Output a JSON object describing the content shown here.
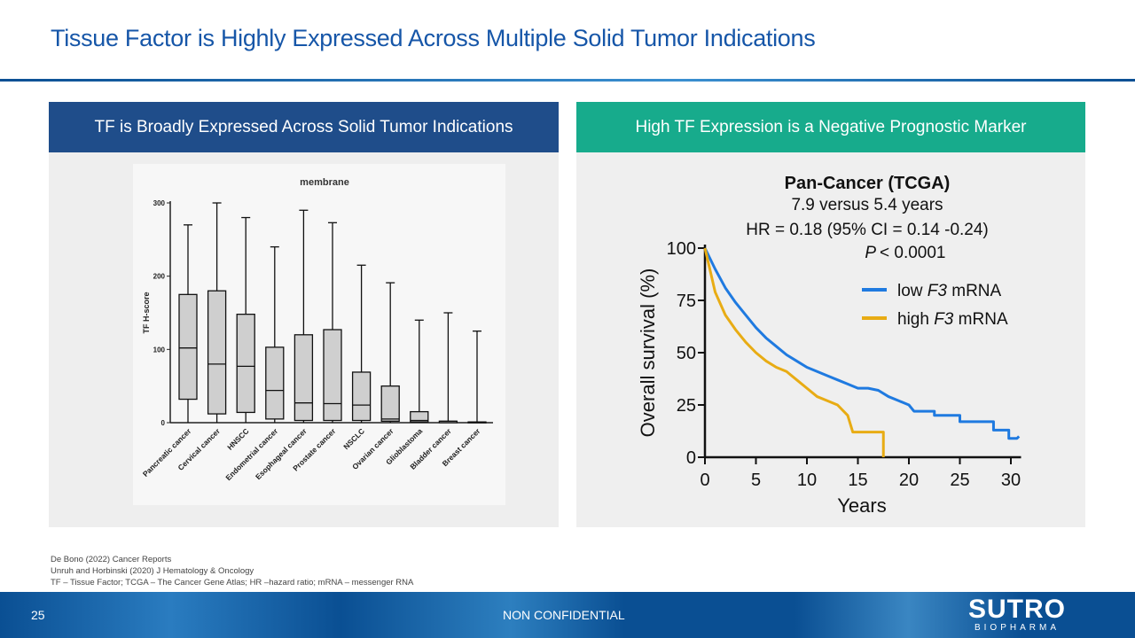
{
  "slide": {
    "title": "Tissue Factor is Highly Expressed Across Multiple Solid Tumor Indications",
    "left_header": "TF is Broadly Expressed Across Solid Tumor Indications",
    "right_header": "High TF Expression is a Negative Prognostic Marker",
    "references": [
      "De Bono (2022) Cancer Reports",
      "Unruh and Horbinski (2020) J Hematology & Oncology",
      "TF – Tissue Factor; TCGA – The Cancer Gene Atlas; HR –hazard ratio; mRNA – messenger RNA"
    ],
    "page_number": "25",
    "confidentiality": "NON CONFIDENTIAL",
    "logo": {
      "name": "SUTRO",
      "sub": "BIOPHARMA"
    },
    "colors": {
      "title": "#1656a8",
      "left_header": "#1f4d8a",
      "right_header": "#17ab8c",
      "footer": "#0a4f93"
    }
  },
  "chart_data": [
    {
      "type": "box",
      "title": "membrane",
      "ylabel": "TF H-score",
      "ylim": [
        0,
        300
      ],
      "yticks": [
        "0",
        "100",
        "200",
        "300"
      ],
      "categories": [
        "Pancreatic cancer",
        "Cervical cancer",
        "HNSCC",
        "Endometrial cancer",
        "Esophageal cancer",
        "Prostate cancer",
        "NSCLC",
        "Ovarian cancer",
        "Glioblastoma",
        "Bladder cancer",
        "Breast cancer"
      ],
      "boxes": [
        {
          "min": 0,
          "q1": 32,
          "median": 102,
          "q3": 175,
          "max": 270
        },
        {
          "min": 0,
          "q1": 12,
          "median": 80,
          "q3": 180,
          "max": 300
        },
        {
          "min": 0,
          "q1": 14,
          "median": 77,
          "q3": 148,
          "max": 280
        },
        {
          "min": 0,
          "q1": 5,
          "median": 44,
          "q3": 103,
          "max": 240
        },
        {
          "min": 0,
          "q1": 3,
          "median": 27,
          "q3": 120,
          "max": 290
        },
        {
          "min": 0,
          "q1": 3,
          "median": 26,
          "q3": 127,
          "max": 273
        },
        {
          "min": 0,
          "q1": 3,
          "median": 24,
          "q3": 69,
          "max": 215
        },
        {
          "min": 0,
          "q1": 2,
          "median": 5,
          "q3": 50,
          "max": 191
        },
        {
          "min": 0,
          "q1": 1,
          "median": 3,
          "q3": 15,
          "max": 140
        },
        {
          "min": 0,
          "q1": 0,
          "median": 2,
          "q3": 2,
          "max": 150
        },
        {
          "min": 0,
          "q1": 0,
          "median": 1,
          "q3": 1,
          "max": 125
        }
      ]
    },
    {
      "type": "line",
      "title": "Pan-Cancer (TCGA)",
      "subtitle_lines": [
        "7.9 versus 5.4 years",
        "HR = 0.18 (95% CI = 0.14 -0.24)",
        "< 0.0001"
      ],
      "p_label": "P",
      "xlabel": "Years",
      "ylabel": "Overall survival (%)",
      "xlim": [
        0,
        31
      ],
      "ylim": [
        0,
        100
      ],
      "xticks": [
        "0",
        "5",
        "10",
        "15",
        "20",
        "25",
        "30"
      ],
      "yticks": [
        "0",
        "25",
        "50",
        "75",
        "100"
      ],
      "legend_position": "right",
      "series": [
        {
          "name": "low F3 mRNA",
          "name_prefix": "low ",
          "name_italic": "F3",
          "name_suffix": " mRNA",
          "color": "#1f7ae0",
          "points": [
            [
              0,
              100
            ],
            [
              1,
              90
            ],
            [
              2,
              81
            ],
            [
              3,
              74
            ],
            [
              4,
              68
            ],
            [
              5,
              62
            ],
            [
              6,
              57
            ],
            [
              7,
              53
            ],
            [
              8,
              49
            ],
            [
              9,
              46
            ],
            [
              10,
              43
            ],
            [
              11,
              41
            ],
            [
              12,
              39
            ],
            [
              13,
              37
            ],
            [
              14,
              35
            ],
            [
              15,
              33
            ],
            [
              16,
              33
            ],
            [
              17,
              32
            ],
            [
              18,
              29
            ],
            [
              19,
              27
            ],
            [
              20,
              25
            ],
            [
              20.5,
              22
            ],
            [
              22.5,
              22
            ],
            [
              22.5,
              20
            ],
            [
              25,
              20
            ],
            [
              25,
              17
            ],
            [
              28.3,
              17
            ],
            [
              28.3,
              13
            ],
            [
              29.8,
              13
            ],
            [
              29.8,
              9
            ],
            [
              30.6,
              9
            ],
            [
              30.8,
              10
            ]
          ]
        },
        {
          "name": "high F3 mRNA",
          "name_prefix": "high ",
          "name_italic": "F3",
          "name_suffix": " mRNA",
          "color": "#e8ac14",
          "points": [
            [
              0,
              100
            ],
            [
              1,
              79
            ],
            [
              2,
              68
            ],
            [
              3,
              61
            ],
            [
              4,
              55
            ],
            [
              5,
              50
            ],
            [
              6,
              46
            ],
            [
              7,
              43
            ],
            [
              8,
              41
            ],
            [
              9,
              37
            ],
            [
              10,
              33
            ],
            [
              11,
              29
            ],
            [
              12,
              27
            ],
            [
              13,
              25
            ],
            [
              14,
              20
            ],
            [
              14.5,
              12
            ],
            [
              17.5,
              12
            ],
            [
              17.5,
              0
            ]
          ]
        }
      ]
    }
  ]
}
